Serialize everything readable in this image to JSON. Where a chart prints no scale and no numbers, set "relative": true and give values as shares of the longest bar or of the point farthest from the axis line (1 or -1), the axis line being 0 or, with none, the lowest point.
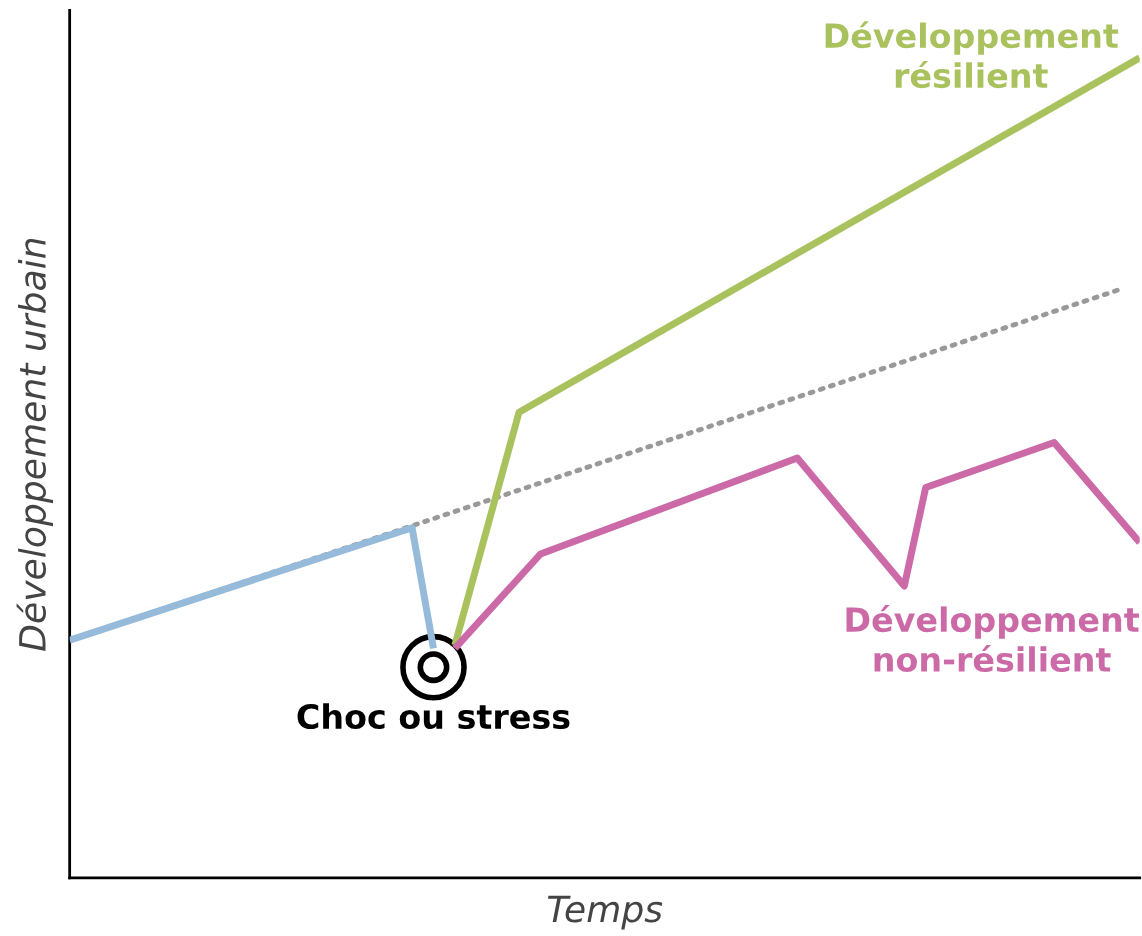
{
  "chart_data": {
    "type": "line",
    "relative": true,
    "xlabel": "Temps",
    "ylabel": "Développement urbain",
    "tick_labels": false,
    "legend": false,
    "marker": "none",
    "categories": [
      null,
      null,
      null,
      null,
      null,
      null,
      null,
      null,
      null,
      null,
      null,
      null,
      null,
      null,
      null,
      null,
      null,
      null,
      null,
      null,
      null,
      null,
      null,
      null,
      null,
      null,
      null,
      null,
      null,
      null,
      null,
      null,
      null,
      null,
      null,
      null,
      null,
      null,
      null,
      null,
      null,
      null,
      null,
      null,
      null,
      null,
      null,
      null,
      null,
      null,
      null
    ],
    "series": [
      {
        "color": "#96bada",
        "line_style": "solid",
        "values": [
          0.29,
          null,
          null,
          null,
          null,
          null,
          null,
          null,
          null,
          null,
          null,
          null,
          null,
          null,
          null,
          null,
          0.427,
          0.28,
          null,
          null,
          null,
          null,
          null,
          null,
          null,
          null,
          null,
          null,
          null,
          null,
          null,
          null,
          null,
          null,
          null,
          null,
          null,
          null,
          null,
          null,
          null,
          null,
          null,
          null,
          null,
          null,
          null,
          null,
          null,
          null,
          null
        ]
      },
      {
        "color": "#999999",
        "line_style": "dotted",
        "values": [
          0.29,
          null,
          null,
          null,
          null,
          null,
          null,
          null,
          null,
          null,
          null,
          null,
          null,
          null,
          null,
          null,
          null,
          null,
          null,
          null,
          null,
          null,
          null,
          null,
          null,
          null,
          null,
          null,
          null,
          null,
          null,
          null,
          null,
          null,
          null,
          null,
          null,
          null,
          null,
          null,
          null,
          null,
          null,
          null,
          null,
          null,
          null,
          null,
          null,
          0.717,
          null
        ]
      },
      {
        "name": "Développement\nrésilient",
        "color": "#a9c25d",
        "line_style": "solid",
        "values": [
          null,
          null,
          null,
          null,
          null,
          null,
          null,
          null,
          null,
          null,
          null,
          null,
          null,
          null,
          null,
          null,
          null,
          null,
          0.284,
          null,
          null,
          0.568,
          null,
          null,
          null,
          null,
          null,
          null,
          null,
          null,
          null,
          null,
          null,
          null,
          null,
          null,
          null,
          null,
          null,
          null,
          null,
          null,
          null,
          null,
          null,
          null,
          null,
          null,
          null,
          null,
          1.0
        ]
      },
      {
        "name": "Développement\nnon-résilient",
        "color": "#cc6aa8",
        "line_style": "solid",
        "values": [
          null,
          null,
          null,
          null,
          null,
          null,
          null,
          null,
          null,
          null,
          null,
          null,
          null,
          null,
          null,
          null,
          null,
          null,
          0.28,
          null,
          null,
          null,
          0.395,
          null,
          null,
          null,
          null,
          null,
          null,
          null,
          null,
          null,
          null,
          null,
          0.512,
          null,
          null,
          null,
          null,
          0.356,
          0.476,
          null,
          null,
          null,
          null,
          null,
          0.531,
          null,
          null,
          null,
          0.409
        ]
      }
    ],
    "annotations": [
      {
        "text": "Choc ou stress",
        "y": 0.257
      }
    ]
  }
}
